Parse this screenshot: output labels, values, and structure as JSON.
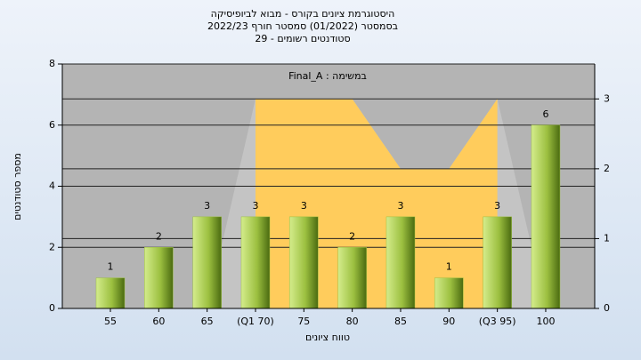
{
  "chart_data": {
    "type": "bar",
    "title": [
      "היסטוגרמת ציונים בקורס - מבוא לביופיסיקה",
      "בסמסטר (01/2022) סמסטר חורף 2022/23",
      "סטודנטים רשומים - 29"
    ],
    "annotation": "במשימה : Final_A",
    "x_label": "טווח ציונים",
    "y_label": "מספר סטודנטים",
    "categories": [
      "55",
      "60",
      "65",
      "(Q1 70)",
      "75",
      "80",
      "85",
      "90",
      "(Q3 95)",
      "100"
    ],
    "values": [
      1,
      2,
      3,
      3,
      3,
      2,
      3,
      1,
      3,
      6
    ],
    "color": "#9cc040",
    "ylim": [
      0,
      8
    ],
    "yticks": [
      0,
      2,
      4,
      6,
      8
    ],
    "y2lim": [
      0,
      3.5
    ],
    "y2ticks": [
      0,
      1,
      2,
      3
    ],
    "series": [
      {
        "color": "#c4c4c4",
        "axis": "y2",
        "values": [
          null,
          null,
          0,
          3,
          3,
          3,
          2,
          2,
          3,
          0
        ]
      },
      {
        "color": "#ffcc5c",
        "axis": "y2",
        "values": [
          null,
          null,
          null,
          3,
          3,
          3,
          2,
          2,
          3,
          null
        ]
      }
    ],
    "grid": true
  }
}
